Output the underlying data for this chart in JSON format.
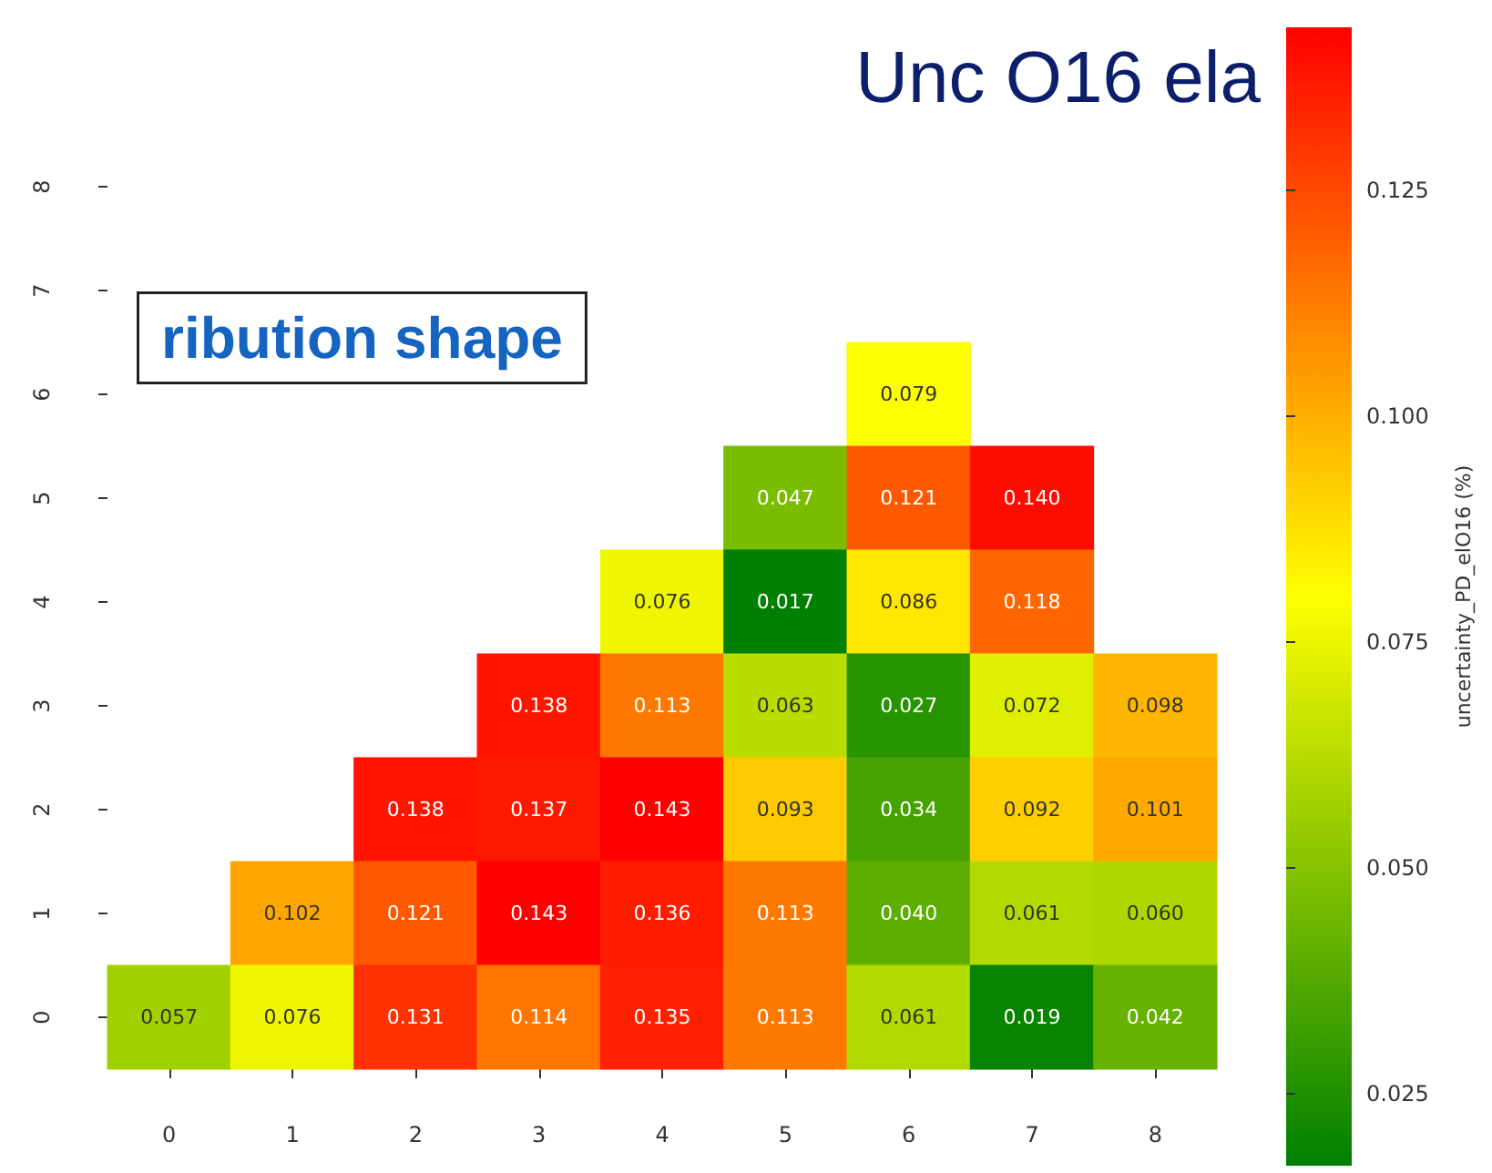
{
  "chart_data": {
    "type": "heatmap",
    "title": "Unc O16 ela",
    "annotations": [
      "ribution shape"
    ],
    "clabel": "uncertainty_PD_elO16 (%)",
    "categories": [
      "0",
      "1",
      "2",
      "3",
      "4",
      "5",
      "6",
      "7",
      "8"
    ],
    "y_categories": [
      "8",
      "7",
      "6",
      "5",
      "4",
      "3",
      "2",
      "1",
      "0"
    ],
    "cells": [
      [
        null,
        null,
        null,
        null,
        null,
        null,
        null,
        null,
        null
      ],
      [
        null,
        null,
        null,
        null,
        null,
        null,
        null,
        null,
        null
      ],
      [
        null,
        null,
        null,
        null,
        null,
        null,
        0.079,
        null,
        null
      ],
      [
        null,
        null,
        null,
        null,
        null,
        0.047,
        0.121,
        0.14,
        null
      ],
      [
        null,
        null,
        null,
        null,
        0.076,
        0.017,
        0.086,
        0.118,
        null
      ],
      [
        null,
        null,
        null,
        0.138,
        0.113,
        0.063,
        0.027,
        0.072,
        0.098
      ],
      [
        null,
        null,
        0.138,
        0.137,
        0.143,
        0.093,
        0.034,
        0.092,
        0.101
      ],
      [
        null,
        0.102,
        0.121,
        0.143,
        0.136,
        0.113,
        0.04,
        0.061,
        0.06
      ],
      [
        0.057,
        0.076,
        0.131,
        0.114,
        0.135,
        0.113,
        0.061,
        0.019,
        0.042
      ]
    ],
    "colors": [
      "#008000",
      "#ffff00",
      "#ff0000"
    ],
    "cell_labels": [
      [
        null,
        null,
        null,
        null,
        null,
        null,
        null,
        null,
        null
      ],
      [
        null,
        null,
        null,
        null,
        null,
        null,
        null,
        null,
        null
      ],
      [
        null,
        null,
        null,
        null,
        null,
        null,
        "0.079",
        null,
        null
      ],
      [
        null,
        null,
        null,
        null,
        null,
        "0.047",
        "0.121",
        "0.140",
        null
      ],
      [
        null,
        null,
        null,
        null,
        "0.076",
        "0.017",
        "0.086",
        "0.118",
        null
      ],
      [
        null,
        null,
        null,
        "0.138",
        "0.113",
        "0.063",
        "0.027",
        "0.072",
        "0.098"
      ],
      [
        null,
        null,
        "0.138",
        "0.137",
        "0.143",
        "0.093",
        "0.034",
        "0.092",
        "0.101"
      ],
      [
        null,
        "0.102",
        "0.121",
        "0.143",
        "0.136",
        "0.113",
        "0.040",
        "0.061",
        "0.060"
      ],
      [
        "0.057",
        "0.076",
        "0.131",
        "0.114",
        "0.135",
        "0.113",
        "0.061",
        "0.019",
        "0.042"
      ]
    ],
    "clim": [
      0.017,
      0.143
    ],
    "cticks": [
      {
        "value": 0.025,
        "label": "0.025"
      },
      {
        "value": 0.05,
        "label": "0.050"
      },
      {
        "value": 0.075,
        "label": "0.075"
      },
      {
        "value": 0.1,
        "label": "0.100"
      },
      {
        "value": 0.125,
        "label": "0.125"
      }
    ],
    "data_labels": true
  }
}
